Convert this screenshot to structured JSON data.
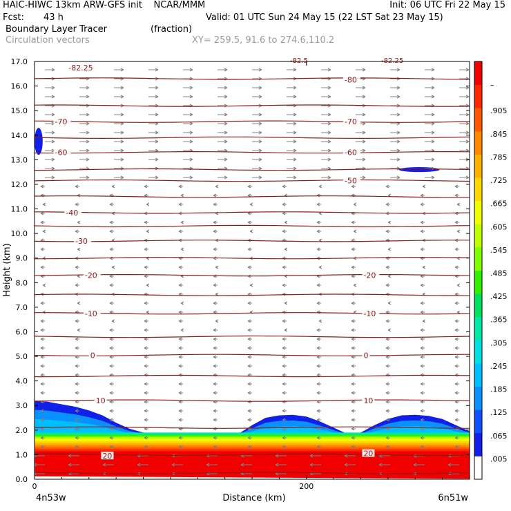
{
  "header": {
    "line1_left": "HAIC-HIWC 13km ARW-GFS init    NCAR/MMM",
    "line1_right": "Init: 06 UTC Fri 22 May 15",
    "fcst_label": "Fcst:",
    "fcst_value": "43 h",
    "valid": "Valid: 01 UTC Sun 24 May 15 (22 LST Sat 23 May 15)",
    "field_name": "Boundary Layer Tracer",
    "field_units": "(fraction)",
    "vector_label": "Circulation vectors",
    "xy_range": "XY= 259.5, 91.6 to 274.6,110.2"
  },
  "chart_data": {
    "type": "heatmap",
    "xlabel": "Distance (km)",
    "ylabel": "Height (km)",
    "xlim": [
      0,
      320
    ],
    "ylim": [
      0,
      17
    ],
    "y_ticks": [
      "0.0",
      "1.0",
      "2.0",
      "3.0",
      "4.0",
      "5.0",
      "6.0",
      "7.0",
      "8.0",
      "9.0",
      "10.0",
      "11.0",
      "12.0",
      "13.0",
      "14.0",
      "15.0",
      "16.0",
      "17.0"
    ],
    "x_ticks": [
      {
        "value": 0,
        "label": "0"
      },
      {
        "value": 200,
        "label": "200"
      }
    ],
    "x_endpoints": {
      "left": "4n53w",
      "right": "6n51w"
    },
    "colorbar": {
      "ticks": [
        ".005",
        ".065",
        ".125",
        ".185",
        ".245",
        ".305",
        ".365",
        ".425",
        ".485",
        ".545",
        ".605",
        ".665",
        ".725",
        ".785",
        ".845",
        ".905",
        "–"
      ],
      "colors": [
        "#ffffff",
        "#1020e8",
        "#1050ff",
        "#0a90ff",
        "#00bfff",
        "#00e0e0",
        "#00e8a8",
        "#00e060",
        "#30f000",
        "#80ff00",
        "#c0ff00",
        "#f0ff00",
        "#ffd800",
        "#ffb000",
        "#ff8800",
        "#ff5800",
        "#ff2800",
        "#f00000"
      ]
    },
    "tracer_profile": {
      "x_km": [
        0,
        10,
        20,
        30,
        40,
        50,
        60,
        70,
        80,
        90,
        100,
        110,
        120,
        130,
        140,
        150,
        160,
        170,
        180,
        190,
        200,
        210,
        220,
        230,
        240,
        250,
        260,
        270,
        280,
        290,
        300,
        310,
        320
      ],
      "top_km": [
        3.2,
        3.15,
        3.05,
        2.95,
        2.8,
        2.6,
        2.3,
        2.05,
        1.9,
        1.85,
        1.85,
        1.82,
        1.8,
        1.78,
        1.75,
        1.85,
        2.2,
        2.5,
        2.6,
        2.62,
        2.55,
        2.35,
        2.1,
        1.85,
        1.9,
        2.2,
        2.45,
        2.6,
        2.62,
        2.58,
        2.45,
        2.2,
        1.95
      ]
    },
    "isotherm_labels": [
      {
        "text": "-82.25",
        "x": 25,
        "y": 16.75
      },
      {
        "text": "-80",
        "x": 228,
        "y": 16.25
      },
      {
        "text": "-70",
        "x": 15,
        "y": 14.55
      },
      {
        "text": "-70",
        "x": 228,
        "y": 14.55
      },
      {
        "text": "-60",
        "x": 15,
        "y": 13.3
      },
      {
        "text": "-60",
        "x": 228,
        "y": 13.3
      },
      {
        "text": "-50",
        "x": 228,
        "y": 12.15
      },
      {
        "text": "-40",
        "x": 23,
        "y": 10.85
      },
      {
        "text": "-30",
        "x": 30,
        "y": 9.7
      },
      {
        "text": "-20",
        "x": 37,
        "y": 8.3
      },
      {
        "text": "-20",
        "x": 242,
        "y": 8.3
      },
      {
        "text": "-10",
        "x": 37,
        "y": 6.75
      },
      {
        "text": "-10",
        "x": 242,
        "y": 6.75
      },
      {
        "text": "0",
        "x": 41,
        "y": 5.05
      },
      {
        "text": "0",
        "x": 242,
        "y": 5.05
      },
      {
        "text": "10",
        "x": 45,
        "y": 3.2
      },
      {
        "text": "10",
        "x": 242,
        "y": 3.2
      },
      {
        "text": "20",
        "x": 50,
        "y": 0.95
      },
      {
        "text": "20",
        "x": 242,
        "y": 1.05
      }
    ],
    "isotherm_heights_km": [
      16.3,
      15.2,
      14.55,
      13.9,
      13.3,
      12.6,
      12.15,
      11.5,
      10.85,
      10.3,
      9.7,
      9.0,
      8.3,
      7.5,
      6.75,
      5.8,
      5.05,
      4.2,
      3.2,
      2.1,
      1.0,
      0.25
    ],
    "top_clipped_labels": [
      "-82.5",
      "-82.25"
    ],
    "blue_patches": [
      {
        "x_km": [
          0,
          6
        ],
        "y_km": [
          13.2,
          14.3
        ],
        "level": ".065"
      },
      {
        "x_km": [
          268,
          298
        ],
        "y_km": [
          12.5,
          12.7
        ],
        "level": ".065"
      }
    ]
  }
}
